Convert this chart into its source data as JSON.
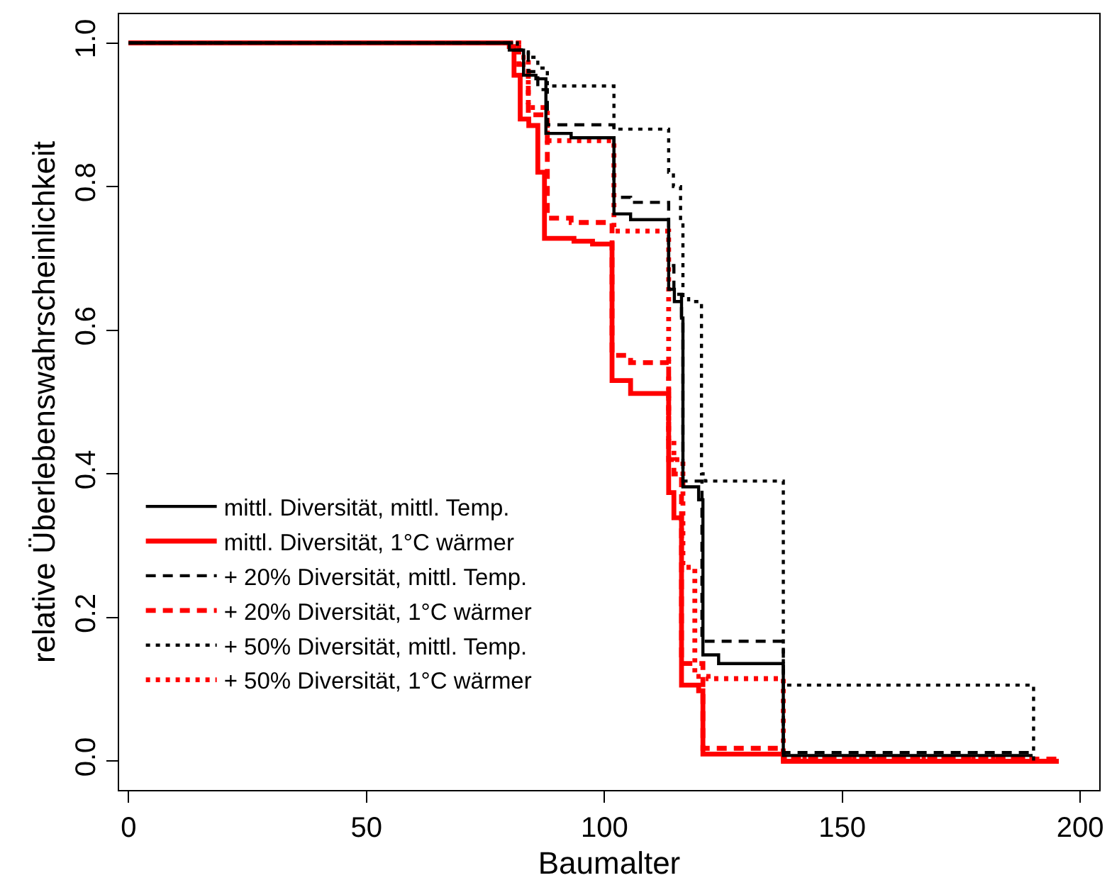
{
  "chart_data": {
    "type": "step",
    "xlabel": "Baumalter",
    "ylabel": "relative Überlebenswahrscheinlichkeit",
    "xlim": [
      -2,
      204
    ],
    "ylim": [
      -0.04,
      1.04
    ],
    "xticks": [
      0,
      50,
      100,
      150,
      200
    ],
    "yticks": [
      {
        "value": 0,
        "label": "0.0"
      },
      0.2,
      0.4,
      0.6,
      0.8,
      {
        "value": 1,
        "label": "1.0"
      }
    ],
    "grid": false,
    "legend": "bottom left",
    "marker": "none",
    "series": [
      {
        "name": "mittl. Diversität, mittl. Temp.",
        "color": "#000000",
        "line_style": "solid",
        "x": [
          0,
          80,
          83,
          85.6,
          87.7,
          93,
          102,
          105.5,
          113.5,
          114.7,
          116.2,
          116.5,
          119.8,
          120.7,
          124,
          137.6,
          190
        ],
        "values": [
          1,
          0.99,
          0.955,
          0.95,
          0.874,
          0.868,
          0.762,
          0.754,
          0.657,
          0.64,
          0.617,
          0.382,
          0.364,
          0.148,
          0.136,
          0.008,
          0.008
        ]
      },
      {
        "name": "mittl. Diversität, 1°C wärmer",
        "color": "#ff0000",
        "line_style": "solid",
        "x": [
          0,
          80,
          81,
          82.3,
          84.1,
          86,
          87.4,
          93.6,
          97.5,
          101.6,
          105.5,
          113.5,
          114.6,
          116.2,
          119.8,
          120.7,
          137.6,
          195.5
        ],
        "values": [
          1,
          0.995,
          0.955,
          0.894,
          0.885,
          0.82,
          0.728,
          0.724,
          0.72,
          0.53,
          0.512,
          0.374,
          0.339,
          0.106,
          0.098,
          0.01,
          0.0,
          0.0
        ]
      },
      {
        "name": "+ 20% Diversität, mittl. Temp.",
        "color": "#000000",
        "line_style": "dashed",
        "x": [
          0,
          81,
          84,
          86,
          88,
          102,
          105.5,
          113.5,
          114.6,
          116.2,
          116.5,
          120.5,
          137.6,
          190
        ],
        "values": [
          1,
          0.99,
          0.96,
          0.935,
          0.886,
          0.785,
          0.778,
          0.69,
          0.65,
          0.62,
          0.39,
          0.167,
          0.012,
          0.012
        ]
      },
      {
        "name": "+ 20% Diversität, 1°C wärmer",
        "color": "#ff0000",
        "line_style": "dashed",
        "x": [
          0,
          82,
          84,
          88,
          93,
          101.6,
          105.5,
          113.5,
          114.6,
          116.2,
          120.7,
          137.6,
          195.5
        ],
        "values": [
          1,
          0.97,
          0.9,
          0.756,
          0.75,
          0.565,
          0.555,
          0.42,
          0.4,
          0.136,
          0.018,
          0.003,
          0.003
        ]
      },
      {
        "name": "+ 50% Diversität, mittl. Temp.",
        "color": "#000000",
        "line_style": "dotted",
        "x": [
          0,
          81.7,
          84,
          86,
          88,
          102,
          113.5,
          114.5,
          116,
          116.5,
          117.7,
          120.4,
          121.2,
          137.6,
          190.2
        ],
        "values": [
          1,
          0.99,
          0.98,
          0.965,
          0.94,
          0.88,
          0.82,
          0.8,
          0.75,
          0.644,
          0.64,
          0.4,
          0.39,
          0.106,
          0.0
        ]
      },
      {
        "name": "+ 50% Diversität, 1°C wärmer",
        "color": "#ff0000",
        "line_style": "dotted",
        "x": [
          0,
          82,
          84,
          88,
          102,
          113.5,
          114.6,
          116.5,
          119,
          121.8,
          137.6,
          190
        ],
        "values": [
          1,
          0.98,
          0.91,
          0.864,
          0.738,
          0.45,
          0.42,
          0.27,
          0.118,
          0.115,
          0.003,
          0.003
        ]
      }
    ]
  }
}
